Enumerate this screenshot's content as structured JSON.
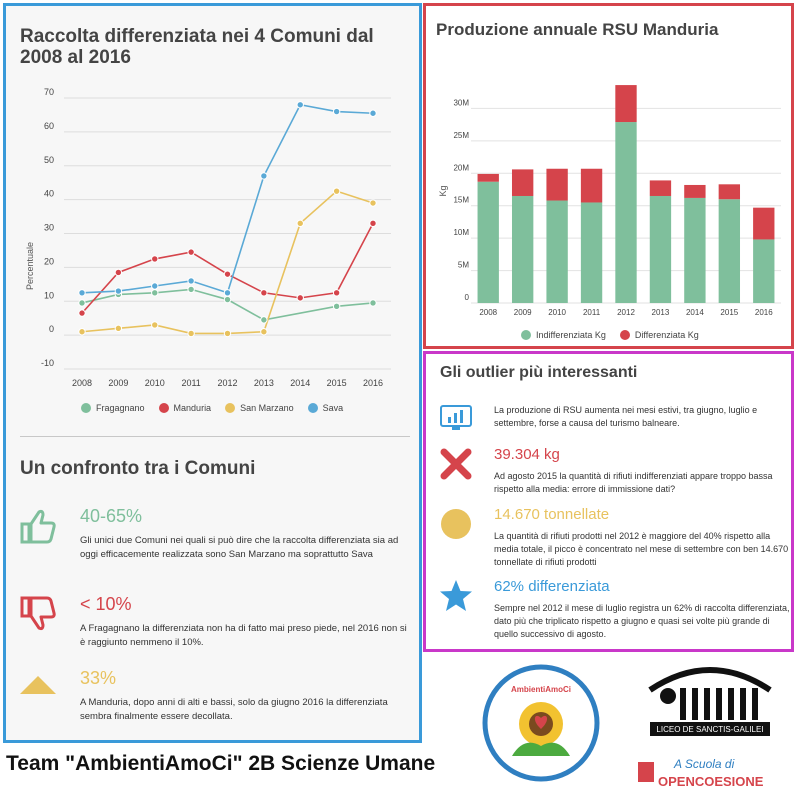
{
  "left": {
    "title": "Raccolta differenziata nei 4 Comuni dal 2008 al 2016",
    "comparison_title": "Un confronto tra i Comuni",
    "items": [
      {
        "value": "40-65%",
        "color": "#7fbf9c",
        "icon": "thumbs-up-icon",
        "text": "Gli unici due Comuni nei quali si può dire che la raccolta differenziata sia ad oggi efficacemente realizzata sono San Marzano ma soprattutto Sava"
      },
      {
        "value": "< 10%",
        "color": "#d5444b",
        "icon": "thumbs-down-icon",
        "text": "A Fragagnano la differenziata non ha di fatto mai preso piede, nel 2016 non si è raggiunto nemmeno il 10%."
      },
      {
        "value": "33%",
        "color": "#e8c25e",
        "icon": "triangle-up-icon",
        "text": "A Manduria, dopo anni di alti e bassi, solo da giugno 2016 la differenziata sembra finalmente essere decollata."
      }
    ]
  },
  "rsu": {
    "title": "Produzione annuale RSU Manduria"
  },
  "outliers": {
    "title": "Gli outlier più interessanti",
    "items": [
      {
        "value": "",
        "color": "#3a9ad9",
        "icon": "monitor-chart-icon",
        "text": "La produzione di RSU aumenta nei mesi estivi, tra giugno, luglio e settembre, forse a causa del turismo balneare."
      },
      {
        "value": "39.304 kg",
        "color": "#d5444b",
        "icon": "x-mark-icon",
        "text": "Ad agosto 2015 la quantità di rifiuti indifferenziati appare troppo bassa rispetto alla media: errore di immissione dati?"
      },
      {
        "value": "14.670 tonnellate",
        "color": "#e8c25e",
        "icon": "circle-icon",
        "text": "La quantità di rifiuti prodotti nel 2012 è maggiore del 40% rispetto alla media totale, il picco è concentrato nel mese di settembre con ben 14.670 tonnellate di rifiuti prodotti"
      },
      {
        "value": "62% differenziata",
        "color": "#3a9ad9",
        "icon": "star-icon",
        "text": "Sempre nel 2012 il mese di luglio registra un 62% di raccolta differenziata, dato più che triplicato rispetto a giugno e quasi sei volte più grande di quello successivo di agosto."
      }
    ]
  },
  "footer": {
    "team": "Team \"AmbientiAmoCi\" 2B Scienze Umane",
    "logo1_text": "AmbientiAmoCi",
    "logo2_text": "LICEO DE SANCTIS-GALILEI",
    "logo3_line1": "A Scuola di",
    "logo3_line2": "OPENCOESIONE"
  },
  "chart_data": [
    {
      "type": "line",
      "title": "Raccolta differenziata nei 4 Comuni dal 2008 al 2016",
      "xlabel": "",
      "ylabel": "Percentuale",
      "x": [
        "2008",
        "2009",
        "2010",
        "2011",
        "2012",
        "2013",
        "2014",
        "2015",
        "2016"
      ],
      "ylim": [
        -10,
        70
      ],
      "yticks": [
        -10,
        0,
        10,
        20,
        30,
        40,
        50,
        60,
        70
      ],
      "grid": true,
      "legend": "bottom",
      "series": [
        {
          "name": "Fragagnano",
          "color": "#7fbf9c",
          "values": [
            9.5,
            12,
            12.5,
            13.5,
            10.5,
            4.5,
            null,
            8.5,
            9.5
          ]
        },
        {
          "name": "Manduria",
          "color": "#d5444b",
          "values": [
            6.5,
            18.5,
            22.5,
            24.5,
            18,
            12.5,
            11,
            12.5,
            33
          ]
        },
        {
          "name": "San Marzano",
          "color": "#e8c25e",
          "values": [
            1,
            2,
            3,
            0.5,
            0.5,
            1,
            33,
            42.5,
            39
          ]
        },
        {
          "name": "Sava",
          "color": "#5aa9d6",
          "values": [
            12.5,
            13,
            14.5,
            16,
            12.5,
            47,
            68,
            66,
            65.5
          ]
        }
      ]
    },
    {
      "type": "bar",
      "stacked": true,
      "title": "Produzione annuale RSU Manduria",
      "ylabel": "Kg",
      "categories": [
        "2008",
        "2009",
        "2010",
        "2011",
        "2012",
        "2013",
        "2014",
        "2015",
        "2016"
      ],
      "ylim": [
        0,
        35000000
      ],
      "yticks": [
        0,
        5000000,
        10000000,
        15000000,
        20000000,
        25000000,
        30000000
      ],
      "ytick_labels": [
        "0",
        "5M",
        "10M",
        "15M",
        "20M",
        "25M",
        "30M"
      ],
      "grid": true,
      "legend": "bottom",
      "series": [
        {
          "name": "Indifferenziata Kg",
          "color": "#7fbf9c",
          "values": [
            18700000,
            16500000,
            15800000,
            15500000,
            27900000,
            16500000,
            16200000,
            16000000,
            9800000
          ]
        },
        {
          "name": "Differenziata Kg",
          "color": "#d5444b",
          "values": [
            1200000,
            4100000,
            4900000,
            5200000,
            5700000,
            2400000,
            2000000,
            2300000,
            4900000
          ]
        }
      ]
    }
  ]
}
